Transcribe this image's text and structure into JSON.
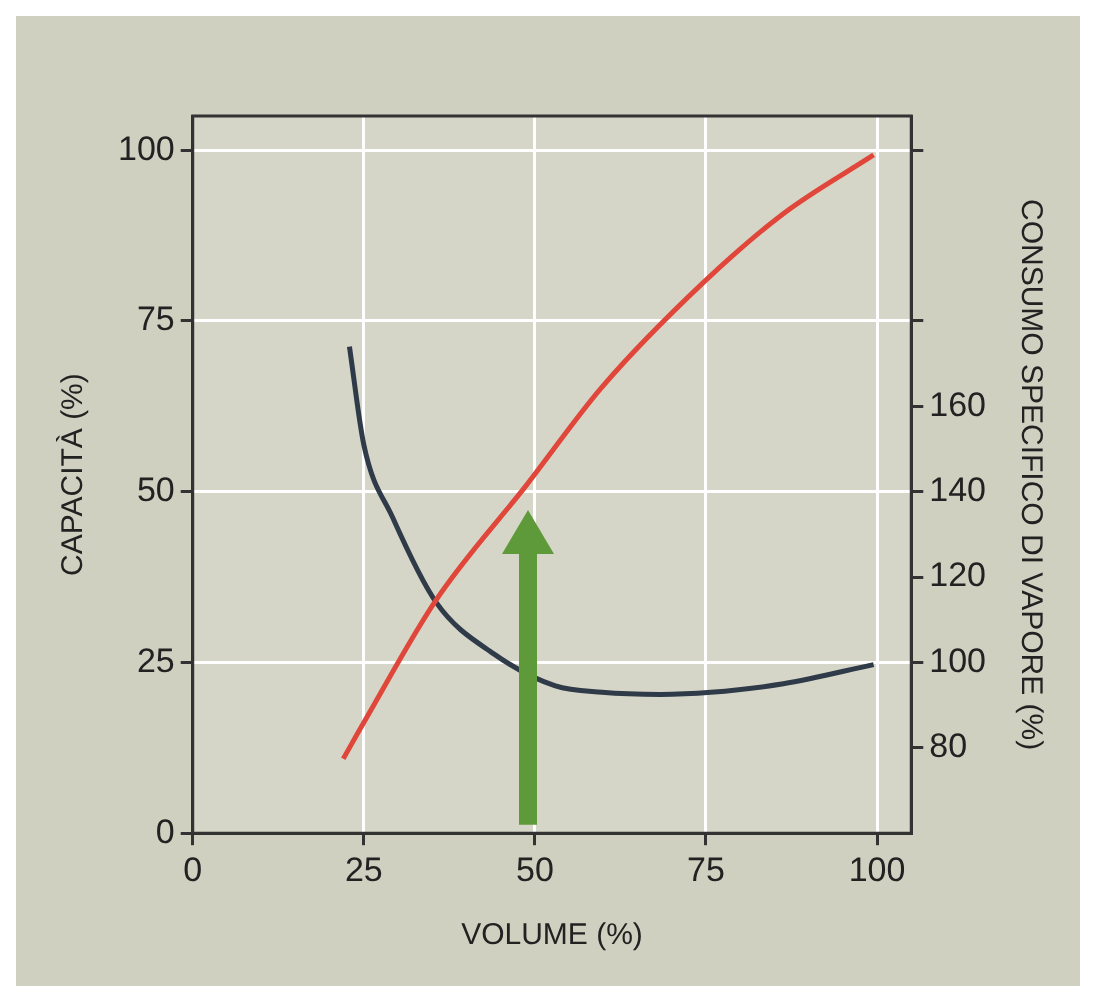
{
  "chart_data": {
    "type": "line",
    "xlabel": "VOLUME (%)",
    "ylabel": "CAPACITÀ (%)",
    "y2label": "CONSUMO SPECIFICO DI VAPORE (%)",
    "xlim": [
      0,
      105
    ],
    "xticks": [
      0,
      25,
      50,
      75,
      100
    ],
    "ylim": [
      0,
      105
    ],
    "yticks": [
      0,
      25,
      50,
      75,
      100
    ],
    "y2lim": [
      60,
      228
    ],
    "y2ticks": [
      80,
      100,
      120,
      140,
      160,
      {
        "value": 180,
        "label": null
      },
      {
        "value": 220,
        "label": null
      }
    ],
    "grid": true,
    "legend": false,
    "marker": "none",
    "line_style": "solid",
    "series": [
      {
        "color": "#e0473a",
        "x": [
          22,
          25,
          35.6,
          48.8,
          59.8,
          74.6,
          86.3,
          99.5
        ],
        "values": [
          10.9,
          16.2,
          34.2,
          51,
          65.3,
          80.6,
          90.7,
          99.3
        ]
      },
      {
        "color": "#2f3b48",
        "axis": "y2",
        "x": [
          22.9,
          25,
          29.2,
          35.6,
          44,
          53,
          59.8,
          68.3,
          75.7,
          86.3,
          99.5
        ],
        "values": [
          174,
          151,
          134,
          114,
          102,
          94.5,
          93,
          92.5,
          93,
          95,
          99.5
        ]
      }
    ]
  }
}
